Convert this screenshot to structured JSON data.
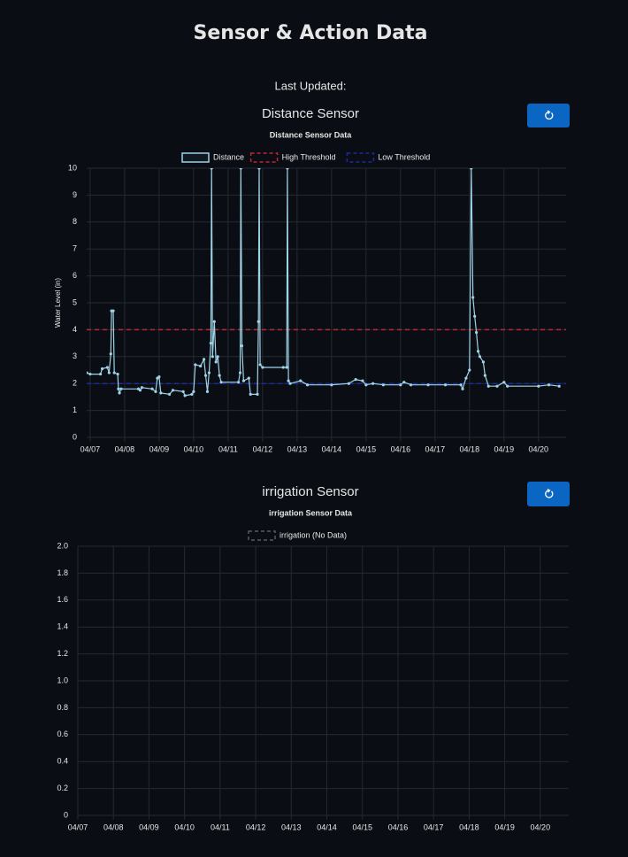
{
  "title": "Sensor & Action Data",
  "last_updated": "Last Updated:",
  "chart_data": [
    {
      "type": "line",
      "panel_title": "Distance Sensor",
      "title": "Distance Sensor Data",
      "y_label": "Water Level (in)",
      "xlim": [
        6.9,
        20.8
      ],
      "ylim": [
        0,
        10
      ],
      "grid": true,
      "xticks": [
        {
          "value": 7,
          "label": "04/07"
        },
        {
          "value": 8,
          "label": "04/08"
        },
        {
          "value": 9,
          "label": "04/09"
        },
        {
          "value": 10,
          "label": "04/10"
        },
        {
          "value": 11,
          "label": "04/11"
        },
        {
          "value": 12,
          "label": "04/12"
        },
        {
          "value": 13,
          "label": "04/13"
        },
        {
          "value": 14,
          "label": "04/14"
        },
        {
          "value": 15,
          "label": "04/15"
        },
        {
          "value": 16,
          "label": "04/16"
        },
        {
          "value": 17,
          "label": "04/17"
        },
        {
          "value": 18,
          "label": "04/18"
        },
        {
          "value": 19,
          "label": "04/19"
        },
        {
          "value": 20,
          "label": "04/20"
        }
      ],
      "yticks": [
        0,
        1,
        2,
        3,
        4,
        5,
        6,
        7,
        8,
        9,
        10
      ],
      "series": [
        {
          "name": "Distance",
          "color": "#9fd3e6",
          "x": [
            6.85,
            6.9,
            7.0,
            7.3,
            7.35,
            7.5,
            7.55,
            7.6,
            7.62,
            7.67,
            7.7,
            7.8,
            7.82,
            7.85,
            7.9,
            8.4,
            8.45,
            8.5,
            8.8,
            8.9,
            8.95,
            9.0,
            9.05,
            9.3,
            9.4,
            9.7,
            9.75,
            9.95,
            10.0,
            10.05,
            10.2,
            10.3,
            10.35,
            10.4,
            10.45,
            10.5,
            10.52,
            10.55,
            10.6,
            10.65,
            10.7,
            10.75,
            10.8,
            11.3,
            11.35,
            11.37,
            11.4,
            11.45,
            11.6,
            11.65,
            11.85,
            11.88,
            11.9,
            11.93,
            12.0,
            12.6,
            12.7,
            12.72,
            12.75,
            12.8,
            13.1,
            13.3,
            14.0,
            14.5,
            14.7,
            14.9,
            15.0,
            15.2,
            15.5,
            16.0,
            16.1,
            16.3,
            16.8,
            17.3,
            17.75,
            17.8,
            17.9,
            18.0,
            18.05,
            18.1,
            18.15,
            18.2,
            18.25,
            18.3,
            18.4,
            18.45,
            18.55,
            18.8,
            19.0,
            19.1,
            20.0,
            20.3,
            20.6
          ],
          "values": [
            2.3,
            2.4,
            2.35,
            2.35,
            2.55,
            2.6,
            2.4,
            3.1,
            4.7,
            4.7,
            2.4,
            2.35,
            1.8,
            1.65,
            1.8,
            1.8,
            1.75,
            1.85,
            1.8,
            1.7,
            2.2,
            2.25,
            1.65,
            1.6,
            1.75,
            1.7,
            1.55,
            1.6,
            1.7,
            2.7,
            2.65,
            2.9,
            2.3,
            1.7,
            2.4,
            3.5,
            10,
            3.0,
            4.3,
            2.8,
            3.0,
            2.3,
            2.05,
            2.05,
            2.4,
            10,
            3.4,
            2.1,
            2.2,
            1.6,
            1.6,
            4.3,
            10,
            2.7,
            2.6,
            2.6,
            2.6,
            10,
            2.1,
            2.0,
            2.1,
            1.95,
            1.95,
            2.0,
            2.15,
            2.1,
            1.95,
            2.0,
            1.95,
            1.95,
            2.05,
            1.95,
            1.95,
            1.95,
            1.95,
            1.8,
            2.2,
            2.5,
            10,
            5.2,
            4.5,
            3.9,
            3.2,
            3.0,
            2.8,
            2.3,
            1.9,
            1.9,
            2.05,
            1.9,
            1.9,
            1.95,
            1.9
          ]
        }
      ],
      "thresholds": [
        {
          "name": "High Threshold",
          "color": "#c0262d",
          "value": 4
        },
        {
          "name": "Low Threshold",
          "color": "#1a2a9c",
          "value": 2
        }
      ]
    },
    {
      "type": "line",
      "panel_title": "irrigation Sensor",
      "title": "irrigation Sensor Data",
      "xlim": [
        7,
        20.8
      ],
      "ylim": [
        0,
        2
      ],
      "grid": true,
      "xticks": [
        {
          "value": 7,
          "label": "04/07"
        },
        {
          "value": 8,
          "label": "04/08"
        },
        {
          "value": 9,
          "label": "04/09"
        },
        {
          "value": 10,
          "label": "04/10"
        },
        {
          "value": 11,
          "label": "04/11"
        },
        {
          "value": 12,
          "label": "04/12"
        },
        {
          "value": 13,
          "label": "04/13"
        },
        {
          "value": 14,
          "label": "04/14"
        },
        {
          "value": 15,
          "label": "04/15"
        },
        {
          "value": 16,
          "label": "04/16"
        },
        {
          "value": 17,
          "label": "04/17"
        },
        {
          "value": 18,
          "label": "04/18"
        },
        {
          "value": 19,
          "label": "04/19"
        },
        {
          "value": 20,
          "label": "04/20"
        }
      ],
      "yticks": [
        0,
        0.2,
        0.4,
        0.6,
        0.8,
        {
          "value": 1,
          "label": "1.0"
        },
        1.2,
        1.4,
        1.6,
        1.8,
        {
          "value": 2,
          "label": "2.0"
        }
      ],
      "series": [
        {
          "name": "irrigation (No Data)",
          "color": "#555b63",
          "x": [],
          "values": []
        }
      ]
    }
  ]
}
